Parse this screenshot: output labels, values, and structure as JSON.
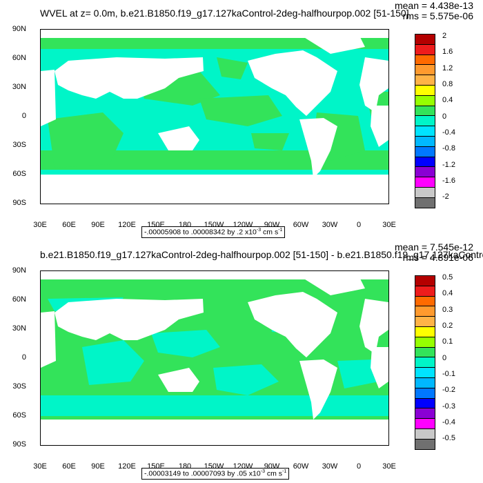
{
  "panels": [
    {
      "title": "WVEL at z=   0.0m, b.e21.B1850.f19_g17.127kaControl-2deg-halfhourpop.002 [51-150]",
      "mean": "mean = 4.438e-13",
      "rms": "rms = 5.575e-06",
      "range_text": "-.00005908 to .00008342 by .2 x10",
      "range_exp": "-3",
      "range_unit": " cm s",
      "range_unit_exp": "-1",
      "colorbar_labels": [
        "2",
        "1.6",
        "1.2",
        "0.8",
        "0.4",
        "0",
        "-0.4",
        "-0.8",
        "-1.2",
        "-1.6",
        "-2"
      ]
    },
    {
      "title": "b.e21.B1850.f19_g17.127kaControl-2deg-halfhourpop.002 [51-150] - b.e21.B1850.f19_g17.127kaControl",
      "mean": "mean = 7.545e-12",
      "rms": "rms = 4.891e-06",
      "range_text": "-.00003149 to .00007093 by .05 x10",
      "range_exp": "-3",
      "range_unit": " cm s",
      "range_unit_exp": "-1",
      "colorbar_labels": [
        "0.5",
        "0.4",
        "0.3",
        "0.2",
        "0.1",
        "0",
        "-0.1",
        "-0.2",
        "-0.3",
        "-0.4",
        "-0.5"
      ]
    }
  ],
  "axes": {
    "lat_labels": [
      "90N",
      "60N",
      "30N",
      "0",
      "30S",
      "60S",
      "90S"
    ],
    "lon_labels": [
      "30E",
      "60E",
      "90E",
      "120E",
      "150E",
      "180",
      "150W",
      "120W",
      "90W",
      "60W",
      "30W",
      "0",
      "30E"
    ]
  },
  "colorbar_colors": [
    "#b40000",
    "#ee1c1c",
    "#ff6a00",
    "#ff9a2e",
    "#ffb347",
    "#ffff00",
    "#96ff00",
    "#33e35a",
    "#00f5c8",
    "#00e4ff",
    "#00b8ff",
    "#0078ff",
    "#0000ff",
    "#8a00d4",
    "#ff00ff",
    "#c8c8c8",
    "#707070"
  ],
  "map_colors": {
    "ocean_positive": "#33e35a",
    "ocean_negative": "#00f5c8",
    "land": "#ffffff"
  }
}
